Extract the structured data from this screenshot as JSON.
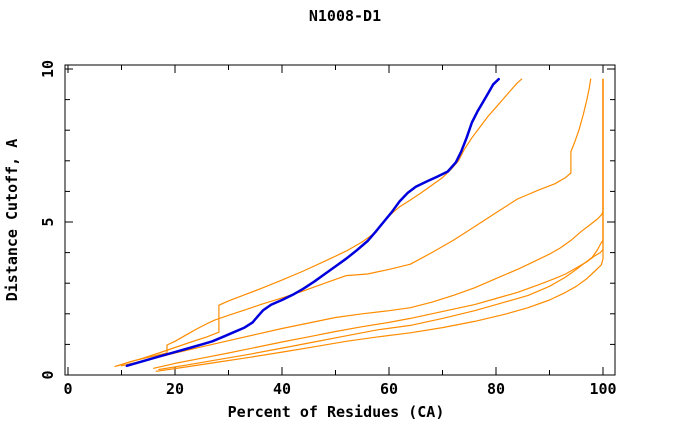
{
  "page": {
    "title": "N1008-D1"
  },
  "chart_data": {
    "type": "line",
    "title": "N1008-D1",
    "xlabel": "Percent of Residues (CA)",
    "ylabel": "Distance Cutoff, A",
    "xlim": [
      0,
      100
    ],
    "ylim": [
      0,
      10
    ],
    "x_major_ticks": [
      0,
      20,
      40,
      60,
      80,
      100
    ],
    "x_minor_ticks": [
      10,
      30,
      50,
      70,
      90
    ],
    "y_major_ticks": [
      0,
      5,
      10
    ],
    "y_minor_ticks": [
      1,
      2,
      3,
      4,
      6,
      7,
      8,
      9
    ],
    "grid": false,
    "legend_position": "none",
    "colors": {
      "model_line": "#ff8c00",
      "highlight_line": "#0000dd",
      "axis": "#000000",
      "background": "#ffffff"
    },
    "series": [
      {
        "name": "model-1",
        "color": "#ff8c00",
        "width": 1.2,
        "points": [
          [
            8.8,
            0.28
          ],
          [
            11,
            0.4
          ],
          [
            14,
            0.55
          ],
          [
            17,
            0.72
          ],
          [
            20,
            0.9
          ],
          [
            23,
            1.08
          ],
          [
            26,
            1.25
          ],
          [
            28.2,
            1.4
          ],
          [
            28.2,
            2.28
          ],
          [
            30,
            2.42
          ],
          [
            33,
            2.62
          ],
          [
            36,
            2.82
          ],
          [
            40,
            3.1
          ],
          [
            44,
            3.4
          ],
          [
            48,
            3.72
          ],
          [
            52,
            4.05
          ],
          [
            55,
            4.35
          ],
          [
            57,
            4.6
          ],
          [
            58.5,
            4.9
          ],
          [
            60,
            5.2
          ],
          [
            62,
            5.5
          ],
          [
            64,
            5.72
          ],
          [
            66,
            5.95
          ],
          [
            68,
            6.2
          ],
          [
            70,
            6.45
          ],
          [
            71.5,
            6.7
          ],
          [
            73,
            7.0
          ],
          [
            74,
            7.35
          ],
          [
            75.5,
            7.75
          ],
          [
            77,
            8.1
          ],
          [
            78.5,
            8.45
          ],
          [
            80,
            8.75
          ],
          [
            81.5,
            9.05
          ],
          [
            83,
            9.35
          ],
          [
            84,
            9.55
          ],
          [
            84.8,
            9.67
          ]
        ]
      },
      {
        "name": "model-2",
        "color": "#ff8c00",
        "width": 1.2,
        "points": [
          [
            9.3,
            0.3
          ],
          [
            12,
            0.45
          ],
          [
            15,
            0.58
          ],
          [
            18.5,
            0.72
          ],
          [
            18.5,
            0.98
          ],
          [
            20,
            1.1
          ],
          [
            22,
            1.3
          ],
          [
            24,
            1.5
          ],
          [
            26,
            1.68
          ],
          [
            27.5,
            1.8
          ],
          [
            30,
            1.95
          ],
          [
            33,
            2.12
          ],
          [
            36,
            2.3
          ],
          [
            40,
            2.52
          ],
          [
            44,
            2.75
          ],
          [
            48,
            3.0
          ],
          [
            52,
            3.25
          ],
          [
            56,
            3.3
          ],
          [
            60,
            3.45
          ],
          [
            64,
            3.62
          ],
          [
            68,
            4.0
          ],
          [
            72,
            4.4
          ],
          [
            76,
            4.85
          ],
          [
            80,
            5.3
          ],
          [
            84,
            5.75
          ],
          [
            86,
            5.9
          ],
          [
            88,
            6.05
          ],
          [
            91,
            6.25
          ],
          [
            93,
            6.45
          ],
          [
            94,
            6.6
          ],
          [
            94,
            7.3
          ],
          [
            94.7,
            7.6
          ],
          [
            95.5,
            8.0
          ],
          [
            96.3,
            8.5
          ],
          [
            97,
            9.0
          ],
          [
            97.4,
            9.35
          ],
          [
            97.7,
            9.67
          ]
        ]
      },
      {
        "name": "model-3",
        "color": "#ff8c00",
        "width": 1.2,
        "points": [
          [
            10,
            0.3
          ],
          [
            15,
            0.5
          ],
          [
            20,
            0.72
          ],
          [
            25,
            0.92
          ],
          [
            30,
            1.12
          ],
          [
            35,
            1.32
          ],
          [
            40,
            1.52
          ],
          [
            45,
            1.7
          ],
          [
            50,
            1.88
          ],
          [
            55,
            2.0
          ],
          [
            60,
            2.1
          ],
          [
            64,
            2.2
          ],
          [
            68,
            2.38
          ],
          [
            72,
            2.6
          ],
          [
            76,
            2.85
          ],
          [
            80,
            3.15
          ],
          [
            84,
            3.45
          ],
          [
            87,
            3.7
          ],
          [
            90,
            3.95
          ],
          [
            92,
            4.15
          ],
          [
            94,
            4.4
          ],
          [
            96,
            4.7
          ],
          [
            97.5,
            4.9
          ],
          [
            99,
            5.1
          ],
          [
            99.8,
            5.25
          ],
          [
            100,
            5.35
          ],
          [
            100,
            9.67
          ]
        ]
      },
      {
        "name": "model-4",
        "color": "#ff8c00",
        "width": 1.2,
        "points": [
          [
            16,
            0.22
          ],
          [
            20,
            0.38
          ],
          [
            25,
            0.55
          ],
          [
            30,
            0.72
          ],
          [
            35,
            0.9
          ],
          [
            40,
            1.08
          ],
          [
            45,
            1.25
          ],
          [
            50,
            1.42
          ],
          [
            55,
            1.58
          ],
          [
            60,
            1.72
          ],
          [
            64,
            1.85
          ],
          [
            68,
            2.0
          ],
          [
            72,
            2.15
          ],
          [
            76,
            2.3
          ],
          [
            80,
            2.5
          ],
          [
            84,
            2.7
          ],
          [
            88,
            2.95
          ],
          [
            91,
            3.15
          ],
          [
            93,
            3.3
          ],
          [
            95,
            3.5
          ],
          [
            97,
            3.7
          ],
          [
            98.5,
            3.9
          ],
          [
            99.5,
            4.0
          ],
          [
            100,
            4.1
          ],
          [
            100,
            9.67
          ]
        ]
      },
      {
        "name": "model-5",
        "color": "#ff8c00",
        "width": 1.2,
        "points": [
          [
            17,
            0.18
          ],
          [
            22,
            0.32
          ],
          [
            28,
            0.5
          ],
          [
            34,
            0.68
          ],
          [
            40,
            0.88
          ],
          [
            46,
            1.08
          ],
          [
            52,
            1.28
          ],
          [
            58,
            1.48
          ],
          [
            64,
            1.62
          ],
          [
            70,
            1.85
          ],
          [
            76,
            2.1
          ],
          [
            82,
            2.4
          ],
          [
            86,
            2.6
          ],
          [
            90,
            2.9
          ],
          [
            93,
            3.2
          ],
          [
            95,
            3.45
          ],
          [
            96.5,
            3.65
          ],
          [
            98,
            3.85
          ],
          [
            99,
            4.1
          ],
          [
            99.6,
            4.3
          ],
          [
            100,
            4.4
          ],
          [
            100,
            9.67
          ]
        ]
      },
      {
        "name": "model-6",
        "color": "#ff8c00",
        "width": 1.2,
        "points": [
          [
            16.5,
            0.12
          ],
          [
            22,
            0.26
          ],
          [
            28,
            0.42
          ],
          [
            34,
            0.58
          ],
          [
            40,
            0.75
          ],
          [
            46,
            0.92
          ],
          [
            52,
            1.1
          ],
          [
            58,
            1.25
          ],
          [
            64,
            1.38
          ],
          [
            70,
            1.55
          ],
          [
            76,
            1.75
          ],
          [
            82,
            2.0
          ],
          [
            86,
            2.2
          ],
          [
            90,
            2.45
          ],
          [
            93,
            2.7
          ],
          [
            95,
            2.9
          ],
          [
            97,
            3.15
          ],
          [
            98.5,
            3.4
          ],
          [
            99.7,
            3.6
          ],
          [
            100,
            3.8
          ],
          [
            100,
            9.67
          ]
        ]
      },
      {
        "name": "highlighted-model",
        "color": "#0000dd",
        "width": 2.5,
        "points": [
          [
            11,
            0.3
          ],
          [
            14,
            0.45
          ],
          [
            17,
            0.6
          ],
          [
            20,
            0.75
          ],
          [
            23,
            0.9
          ],
          [
            25,
            1.0
          ],
          [
            27,
            1.1
          ],
          [
            29,
            1.25
          ],
          [
            31,
            1.4
          ],
          [
            33,
            1.55
          ],
          [
            34.5,
            1.72
          ],
          [
            35.5,
            1.92
          ],
          [
            36.5,
            2.12
          ],
          [
            38,
            2.3
          ],
          [
            40,
            2.45
          ],
          [
            42,
            2.62
          ],
          [
            44,
            2.82
          ],
          [
            46,
            3.05
          ],
          [
            48,
            3.3
          ],
          [
            50,
            3.55
          ],
          [
            52,
            3.8
          ],
          [
            54,
            4.08
          ],
          [
            56,
            4.38
          ],
          [
            57.5,
            4.68
          ],
          [
            59,
            5.0
          ],
          [
            60.5,
            5.32
          ],
          [
            62,
            5.68
          ],
          [
            63.5,
            5.95
          ],
          [
            65,
            6.15
          ],
          [
            67,
            6.32
          ],
          [
            69,
            6.48
          ],
          [
            71,
            6.65
          ],
          [
            72.5,
            6.95
          ],
          [
            73.5,
            7.3
          ],
          [
            74.5,
            7.75
          ],
          [
            75.5,
            8.25
          ],
          [
            76.5,
            8.6
          ],
          [
            77.5,
            8.9
          ],
          [
            78.5,
            9.2
          ],
          [
            79.5,
            9.5
          ],
          [
            80.5,
            9.67
          ]
        ]
      }
    ]
  }
}
